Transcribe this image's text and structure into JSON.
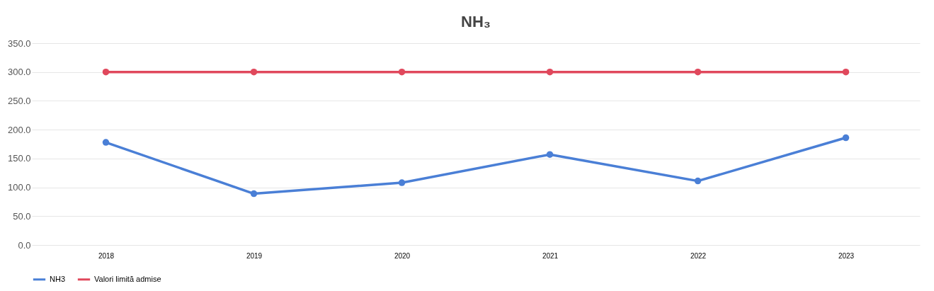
{
  "chart_data": {
    "type": "line",
    "title": "NH₃",
    "categories": [
      "2018",
      "2019",
      "2020",
      "2021",
      "2022",
      "2023"
    ],
    "series": [
      {
        "name": "NH3",
        "color": "#4a7fd6",
        "values": [
          178,
          89,
          108,
          157,
          111,
          186
        ]
      },
      {
        "name": "Valori limită admise",
        "color": "#e0485c",
        "values": [
          300,
          300,
          300,
          300,
          300,
          300
        ]
      }
    ],
    "ylim": [
      0,
      350
    ],
    "yticks": [
      {
        "value": 0,
        "label": "0.0"
      },
      {
        "value": 50,
        "label": "50.0"
      },
      {
        "value": 100,
        "label": "100.0"
      },
      {
        "value": 150,
        "label": "150.0"
      },
      {
        "value": 200,
        "label": "200.0"
      },
      {
        "value": 250,
        "label": "250.0"
      },
      {
        "value": 300,
        "label": "300.0"
      },
      {
        "value": 350,
        "label": "350.0"
      }
    ],
    "grid": "y",
    "legend": "bottom",
    "marker": "circle",
    "line_style": "solid"
  }
}
